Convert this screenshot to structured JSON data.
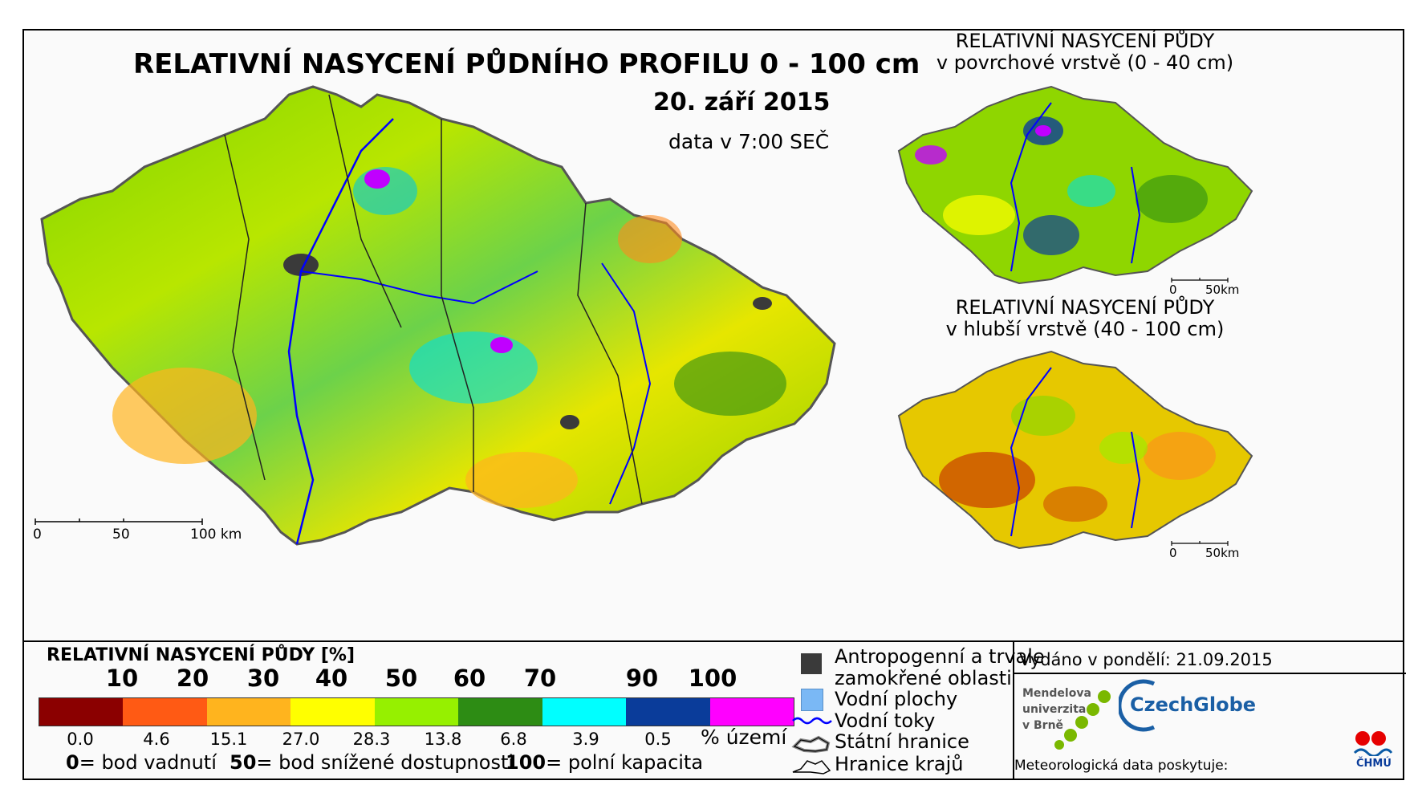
{
  "title": "RELATIVNÍ NASYCENÍ PŮDNÍHO PROFILU 0 - 100 cm",
  "date": "20. září 2015",
  "time": "data v 7:00 SEČ",
  "inset_top": {
    "line1": "RELATIVNÍ NASYCENÍ PŮDY",
    "line2": "v povrchové vrstvě (0 - 40 cm)"
  },
  "inset_bottom": {
    "line1": "RELATIVNÍ NASYCENÍ PŮDY",
    "line2": "v hlubší vrstvě (40 - 100 cm)"
  },
  "scalebar_main": {
    "t0": "0",
    "t1": "50",
    "t2": "100 km"
  },
  "scalebar_small": {
    "t0": "0",
    "t1": "50km"
  },
  "legend": {
    "title": "RELATIVNÍ NASYCENÍ PŮDY [%]",
    "thresholds": [
      "10",
      "20",
      "30",
      "40",
      "50",
      "60",
      "70",
      "90",
      "100"
    ],
    "colors": [
      "#8b0000",
      "#ff5a14",
      "#ffb41e",
      "#ffff00",
      "#96f000",
      "#2d8c14",
      "#00ffff",
      "#0a3c9a",
      "#ff00ff"
    ],
    "area_pct": [
      "0.0",
      "4.6",
      "15.1",
      "27.0",
      "28.3",
      "13.8",
      "6.8",
      "3.9",
      "0.5"
    ],
    "area_unit": "% území",
    "def0_num": "0",
    "def0_text": "= bod vadnutí",
    "def50_num": "50",
    "def50_text": "= bod snížené dostupnosti",
    "def100_num": "100",
    "def100_text": "= polní kapacita"
  },
  "map_legend": {
    "anthropogenic_1": "Antropogenní a trvale",
    "anthropogenic_2": "zamokřené oblasti",
    "water_bodies": "Vodní plochy",
    "rivers": "Vodní toky",
    "state_border": "Státní hranice",
    "regions": "Hranice krajů",
    "anthropogenic_color": "#3a3a3a",
    "water_color": "#7ab8f5",
    "river_color": "#0000ff"
  },
  "info": {
    "issued": "Vydáno v pondělí: 21.09.2015",
    "mendel_1": "Mendelova",
    "mendel_2": "univerzita",
    "mendel_3": "v Brně",
    "czechglobe": "CzechGlobe",
    "met_data": "Meteorologická data poskytuje:",
    "chmu": "ČHMÚ"
  }
}
